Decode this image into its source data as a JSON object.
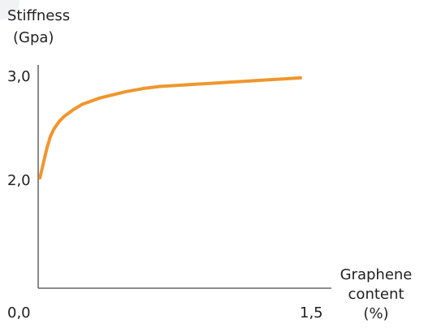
{
  "chart_data": {
    "type": "line",
    "ylabel": [
      "Stiffness",
      "(Gpa)"
    ],
    "xlabel": [
      "Graphene",
      "content",
      "(%)"
    ],
    "xlim": [
      0,
      1.5
    ],
    "ylim": [
      0,
      3
    ],
    "x_ticks": [
      "0,0",
      "1,5"
    ],
    "y_ticks": [
      "3,0",
      "2,0"
    ],
    "series": [
      {
        "color": "#F0962D",
        "x": [
          0.01,
          0.03,
          0.05,
          0.07,
          0.09,
          0.12,
          0.15,
          0.2,
          0.25,
          0.3,
          0.35,
          0.4,
          0.5,
          0.6,
          0.7,
          0.8,
          0.9,
          1.0,
          1.1,
          1.2,
          1.3,
          1.4,
          1.5
        ],
        "values": [
          2.03,
          2.17,
          2.31,
          2.42,
          2.49,
          2.56,
          2.61,
          2.67,
          2.72,
          2.75,
          2.78,
          2.8,
          2.84,
          2.87,
          2.89,
          2.9,
          2.91,
          2.92,
          2.93,
          2.94,
          2.95,
          2.96,
          2.97
        ]
      }
    ],
    "axis_color": "#4a4a4a",
    "text_color": "#222222"
  }
}
